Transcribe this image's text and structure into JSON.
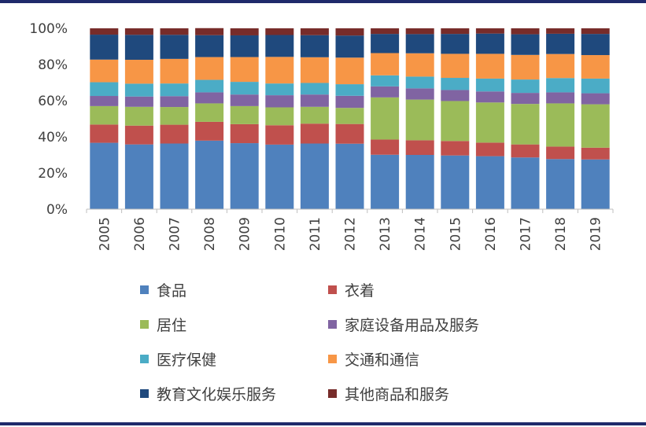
{
  "chart_data": {
    "type": "bar",
    "stacked": true,
    "categories": [
      "2005",
      "2006",
      "2007",
      "2008",
      "2009",
      "2010",
      "2011",
      "2012",
      "2013",
      "2014",
      "2015",
      "2016",
      "2017",
      "2018",
      "2019"
    ],
    "ylim": [
      0,
      100
    ],
    "yticks": [
      "0%",
      "20%",
      "40%",
      "60%",
      "80%",
      "100%"
    ],
    "grid": false,
    "legend_position": "bottom",
    "series": [
      {
        "name": "食品",
        "color": "#4f81bd",
        "values": [
          36.7,
          35.8,
          36.3,
          37.9,
          36.5,
          35.7,
          36.3,
          36.2,
          30.1,
          30.0,
          29.7,
          29.3,
          28.6,
          27.7,
          27.5
        ]
      },
      {
        "name": "衣着",
        "color": "#c0504d",
        "values": [
          10.1,
          10.4,
          10.4,
          10.4,
          10.5,
          10.7,
          11.0,
          10.9,
          8.4,
          8.1,
          8.0,
          7.5,
          7.2,
          6.9,
          6.5
        ]
      },
      {
        "name": "居住",
        "color": "#9bbb59",
        "values": [
          10.2,
          10.4,
          9.8,
          10.2,
          10.0,
          9.9,
          9.3,
          8.9,
          23.3,
          22.5,
          22.1,
          22.2,
          22.4,
          23.9,
          24.0
        ]
      },
      {
        "name": "家庭设备用品及服务",
        "color": "#8064a2",
        "values": [
          5.6,
          5.7,
          6.0,
          6.1,
          6.4,
          6.7,
          6.8,
          6.7,
          6.1,
          6.2,
          6.1,
          6.1,
          6.1,
          6.1,
          6.1
        ]
      },
      {
        "name": "医疗保健",
        "color": "#4bacc6",
        "values": [
          7.6,
          7.1,
          7.0,
          6.9,
          7.0,
          6.5,
          6.4,
          6.4,
          6.1,
          6.5,
          6.7,
          7.1,
          7.4,
          7.9,
          8.1
        ]
      },
      {
        "name": "交通和通信",
        "color": "#f79646",
        "values": [
          12.5,
          13.2,
          13.6,
          12.6,
          13.7,
          14.7,
          14.2,
          14.7,
          12.3,
          12.9,
          13.3,
          13.7,
          13.6,
          13.3,
          13.0
        ]
      },
      {
        "name": "教育文化娱乐服务",
        "color": "#1f497d",
        "values": [
          13.8,
          13.8,
          13.3,
          12.1,
          12.0,
          12.1,
          12.2,
          12.2,
          10.6,
          10.6,
          11.0,
          11.2,
          11.4,
          11.2,
          11.7
        ]
      },
      {
        "name": "其他商品和服务",
        "color": "#772c2a",
        "values": [
          3.5,
          3.6,
          3.6,
          3.9,
          3.9,
          3.7,
          3.8,
          4.0,
          3.1,
          3.2,
          3.1,
          2.9,
          3.3,
          3.0,
          3.1
        ]
      }
    ]
  }
}
